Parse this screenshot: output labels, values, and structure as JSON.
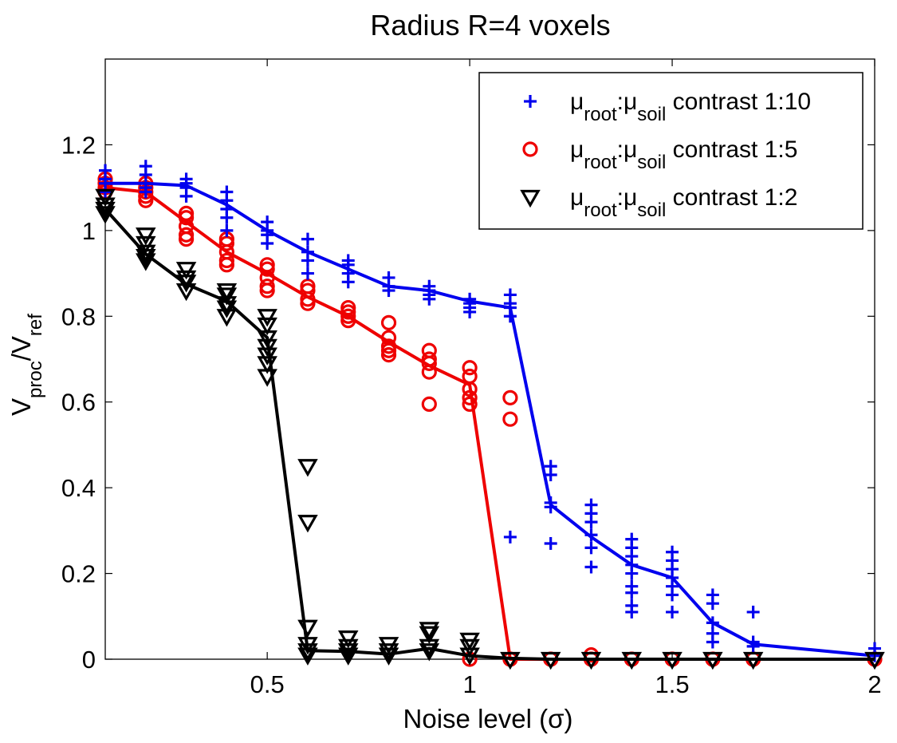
{
  "chart_data": {
    "type": "line",
    "title": "Radius R=4 voxels",
    "xlabel": "Noise level (σ)",
    "ylabel": {
      "base": "V",
      "num_sub": "proc",
      "sep": "/V",
      "den_sub": "ref"
    },
    "xlim": [
      0.1,
      2.0
    ],
    "ylim": [
      0,
      1.4
    ],
    "xticks": [
      {
        "value": 0.5,
        "label": "0.5"
      },
      {
        "value": 1.0,
        "label": "1"
      },
      {
        "value": 1.5,
        "label": "1.5"
      },
      {
        "value": 2.0,
        "label": "2"
      }
    ],
    "yticks": [
      {
        "value": 0,
        "label": "0"
      },
      {
        "value": 0.2,
        "label": "0.2"
      },
      {
        "value": 0.4,
        "label": "0.4"
      },
      {
        "value": 0.6,
        "label": "0.6"
      },
      {
        "value": 0.8,
        "label": "0.8"
      },
      {
        "value": 1.0,
        "label": "1"
      },
      {
        "value": 1.2,
        "label": "1.2"
      }
    ],
    "grid": false,
    "legend_position": "top-right",
    "series": [
      {
        "name": "μroot:μsoil contrast 1:10",
        "legend": {
          "a": "μ",
          "a_sub": "root",
          "b": ":μ",
          "b_sub": "soil",
          "rest": " contrast 1:10"
        },
        "marker": "plus",
        "color": "#0000ee",
        "mean": [
          [
            0.1,
            1.11
          ],
          [
            0.2,
            1.11
          ],
          [
            0.3,
            1.105
          ],
          [
            0.4,
            1.06
          ],
          [
            0.5,
            1.0
          ],
          [
            0.6,
            0.95
          ],
          [
            0.7,
            0.91
          ],
          [
            0.8,
            0.87
          ],
          [
            0.9,
            0.86
          ],
          [
            1.0,
            0.835
          ],
          [
            1.1,
            0.82
          ],
          [
            1.2,
            0.36
          ],
          [
            1.3,
            0.285
          ],
          [
            1.4,
            0.22
          ],
          [
            1.5,
            0.19
          ],
          [
            1.6,
            0.085
          ],
          [
            1.7,
            0.035
          ],
          [
            2.0,
            0.008
          ]
        ],
        "points": [
          [
            0.1,
            1.14
          ],
          [
            0.1,
            1.12
          ],
          [
            0.1,
            1.11
          ],
          [
            0.1,
            1.09
          ],
          [
            0.2,
            1.15
          ],
          [
            0.2,
            1.13
          ],
          [
            0.2,
            1.1
          ],
          [
            0.2,
            1.09
          ],
          [
            0.3,
            1.12
          ],
          [
            0.3,
            1.11
          ],
          [
            0.3,
            1.1
          ],
          [
            0.3,
            1.08
          ],
          [
            0.4,
            1.09
          ],
          [
            0.4,
            1.07
          ],
          [
            0.4,
            1.05
          ],
          [
            0.4,
            1.03
          ],
          [
            0.4,
            1.0
          ],
          [
            0.5,
            1.02
          ],
          [
            0.5,
            1.0
          ],
          [
            0.5,
            0.99
          ],
          [
            0.5,
            0.97
          ],
          [
            0.6,
            0.98
          ],
          [
            0.6,
            0.95
          ],
          [
            0.6,
            0.93
          ],
          [
            0.6,
            0.9
          ],
          [
            0.7,
            0.93
          ],
          [
            0.7,
            0.92
          ],
          [
            0.7,
            0.9
          ],
          [
            0.7,
            0.88
          ],
          [
            0.8,
            0.89
          ],
          [
            0.8,
            0.87
          ],
          [
            0.8,
            0.86
          ],
          [
            0.9,
            0.87
          ],
          [
            0.9,
            0.86
          ],
          [
            0.9,
            0.85
          ],
          [
            0.9,
            0.84
          ],
          [
            1.0,
            0.84
          ],
          [
            1.0,
            0.83
          ],
          [
            1.0,
            0.82
          ],
          [
            1.0,
            0.81
          ],
          [
            1.1,
            0.85
          ],
          [
            1.1,
            0.83
          ],
          [
            1.1,
            0.82
          ],
          [
            1.1,
            0.8
          ],
          [
            1.1,
            0.285
          ],
          [
            1.2,
            0.45
          ],
          [
            1.2,
            0.43
          ],
          [
            1.2,
            0.365
          ],
          [
            1.2,
            0.355
          ],
          [
            1.2,
            0.27
          ],
          [
            1.3,
            0.36
          ],
          [
            1.3,
            0.34
          ],
          [
            1.3,
            0.32
          ],
          [
            1.3,
            0.29
          ],
          [
            1.3,
            0.26
          ],
          [
            1.3,
            0.215
          ],
          [
            1.4,
            0.28
          ],
          [
            1.4,
            0.26
          ],
          [
            1.4,
            0.24
          ],
          [
            1.4,
            0.22
          ],
          [
            1.4,
            0.2
          ],
          [
            1.4,
            0.17
          ],
          [
            1.4,
            0.155
          ],
          [
            1.4,
            0.125
          ],
          [
            1.4,
            0.11
          ],
          [
            1.5,
            0.25
          ],
          [
            1.5,
            0.23
          ],
          [
            1.5,
            0.21
          ],
          [
            1.5,
            0.19
          ],
          [
            1.5,
            0.17
          ],
          [
            1.5,
            0.15
          ],
          [
            1.5,
            0.11
          ],
          [
            1.6,
            0.15
          ],
          [
            1.6,
            0.13
          ],
          [
            1.6,
            0.085
          ],
          [
            1.6,
            0.06
          ],
          [
            1.6,
            0.04
          ],
          [
            1.7,
            0.11
          ],
          [
            1.7,
            0.04
          ],
          [
            1.7,
            0.03
          ],
          [
            2.0,
            0.025
          ],
          [
            2.0,
            0.008
          ]
        ]
      },
      {
        "name": "μroot:μsoil contrast 1:5",
        "legend": {
          "a": "μ",
          "a_sub": "root",
          "b": ":μ",
          "b_sub": "soil",
          "rest": " contrast 1:5"
        },
        "marker": "circle",
        "color": "#ee0000",
        "mean": [
          [
            0.1,
            1.1
          ],
          [
            0.2,
            1.09
          ],
          [
            0.3,
            1.02
          ],
          [
            0.4,
            0.95
          ],
          [
            0.5,
            0.9
          ],
          [
            0.6,
            0.845
          ],
          [
            0.7,
            0.8
          ],
          [
            0.8,
            0.74
          ],
          [
            0.9,
            0.685
          ],
          [
            1.0,
            0.64
          ],
          [
            1.1,
            0.0
          ],
          [
            1.2,
            0.0
          ],
          [
            1.3,
            0.0
          ],
          [
            1.4,
            0.0
          ],
          [
            1.5,
            0.0
          ],
          [
            1.6,
            0.0
          ],
          [
            1.7,
            0.0
          ],
          [
            2.0,
            0.0
          ]
        ],
        "points": [
          [
            0.1,
            1.12
          ],
          [
            0.1,
            1.11
          ],
          [
            0.1,
            1.1
          ],
          [
            0.1,
            1.09
          ],
          [
            0.2,
            1.11
          ],
          [
            0.2,
            1.1
          ],
          [
            0.2,
            1.09
          ],
          [
            0.2,
            1.08
          ],
          [
            0.2,
            1.07
          ],
          [
            0.3,
            1.04
          ],
          [
            0.3,
            1.03
          ],
          [
            0.3,
            1.01
          ],
          [
            0.3,
            0.99
          ],
          [
            0.3,
            0.98
          ],
          [
            0.4,
            0.98
          ],
          [
            0.4,
            0.97
          ],
          [
            0.4,
            0.95
          ],
          [
            0.4,
            0.93
          ],
          [
            0.4,
            0.92
          ],
          [
            0.5,
            0.92
          ],
          [
            0.5,
            0.91
          ],
          [
            0.5,
            0.89
          ],
          [
            0.5,
            0.87
          ],
          [
            0.5,
            0.86
          ],
          [
            0.6,
            0.87
          ],
          [
            0.6,
            0.86
          ],
          [
            0.6,
            0.84
          ],
          [
            0.6,
            0.83
          ],
          [
            0.7,
            0.82
          ],
          [
            0.7,
            0.81
          ],
          [
            0.7,
            0.8
          ],
          [
            0.7,
            0.79
          ],
          [
            0.8,
            0.785
          ],
          [
            0.8,
            0.75
          ],
          [
            0.8,
            0.73
          ],
          [
            0.8,
            0.72
          ],
          [
            0.8,
            0.71
          ],
          [
            0.9,
            0.72
          ],
          [
            0.9,
            0.7
          ],
          [
            0.9,
            0.69
          ],
          [
            0.9,
            0.67
          ],
          [
            0.9,
            0.595
          ],
          [
            1.0,
            0.68
          ],
          [
            1.0,
            0.66
          ],
          [
            1.0,
            0.63
          ],
          [
            1.0,
            0.61
          ],
          [
            1.0,
            0.595
          ],
          [
            1.0,
            0.0
          ],
          [
            1.1,
            0.61
          ],
          [
            1.1,
            0.56
          ],
          [
            1.1,
            0.0
          ],
          [
            1.2,
            0.0
          ],
          [
            1.3,
            0.01
          ],
          [
            1.3,
            0.0
          ],
          [
            1.4,
            0.0
          ],
          [
            1.5,
            0.0
          ],
          [
            1.6,
            0.0
          ],
          [
            1.7,
            0.0
          ],
          [
            2.0,
            0.0
          ]
        ]
      },
      {
        "name": "μroot:μsoil contrast 1:2",
        "legend": {
          "a": "μ",
          "a_sub": "root",
          "b": ":μ",
          "b_sub": "soil",
          "rest": " contrast 1:2"
        },
        "marker": "triangle-down",
        "color": "#000000",
        "mean": [
          [
            0.1,
            1.05
          ],
          [
            0.2,
            0.945
          ],
          [
            0.3,
            0.875
          ],
          [
            0.4,
            0.835
          ],
          [
            0.5,
            0.75
          ],
          [
            0.6,
            0.02
          ],
          [
            0.7,
            0.018
          ],
          [
            0.8,
            0.012
          ],
          [
            0.9,
            0.025
          ],
          [
            1.0,
            0.008
          ],
          [
            1.1,
            0.002
          ],
          [
            1.2,
            0.0
          ],
          [
            1.3,
            0.0
          ],
          [
            1.4,
            0.0
          ],
          [
            1.5,
            0.0
          ],
          [
            1.6,
            0.0
          ],
          [
            1.7,
            0.0
          ],
          [
            2.0,
            0.0
          ]
        ],
        "points": [
          [
            0.1,
            1.08
          ],
          [
            0.1,
            1.06
          ],
          [
            0.1,
            1.05
          ],
          [
            0.1,
            1.04
          ],
          [
            0.2,
            0.99
          ],
          [
            0.2,
            0.97
          ],
          [
            0.2,
            0.95
          ],
          [
            0.2,
            0.94
          ],
          [
            0.2,
            0.93
          ],
          [
            0.3,
            0.91
          ],
          [
            0.3,
            0.89
          ],
          [
            0.3,
            0.88
          ],
          [
            0.3,
            0.86
          ],
          [
            0.4,
            0.86
          ],
          [
            0.4,
            0.85
          ],
          [
            0.4,
            0.83
          ],
          [
            0.4,
            0.82
          ],
          [
            0.4,
            0.8
          ],
          [
            0.5,
            0.8
          ],
          [
            0.5,
            0.78
          ],
          [
            0.5,
            0.75
          ],
          [
            0.5,
            0.73
          ],
          [
            0.5,
            0.71
          ],
          [
            0.5,
            0.69
          ],
          [
            0.5,
            0.66
          ],
          [
            0.6,
            0.45
          ],
          [
            0.6,
            0.32
          ],
          [
            0.6,
            0.075
          ],
          [
            0.6,
            0.035
          ],
          [
            0.6,
            0.02
          ],
          [
            0.6,
            0.01
          ],
          [
            0.7,
            0.05
          ],
          [
            0.7,
            0.03
          ],
          [
            0.7,
            0.02
          ],
          [
            0.7,
            0.01
          ],
          [
            0.8,
            0.035
          ],
          [
            0.8,
            0.02
          ],
          [
            0.8,
            0.01
          ],
          [
            0.9,
            0.07
          ],
          [
            0.9,
            0.06
          ],
          [
            0.9,
            0.03
          ],
          [
            0.9,
            0.02
          ],
          [
            1.0,
            0.045
          ],
          [
            1.0,
            0.03
          ],
          [
            1.0,
            0.01
          ],
          [
            1.1,
            0.0
          ],
          [
            1.2,
            0.0
          ],
          [
            1.3,
            0.0
          ],
          [
            1.4,
            0.0
          ],
          [
            1.5,
            0.0
          ],
          [
            1.6,
            0.0
          ],
          [
            1.7,
            0.0
          ],
          [
            2.0,
            0.0
          ]
        ]
      }
    ]
  }
}
